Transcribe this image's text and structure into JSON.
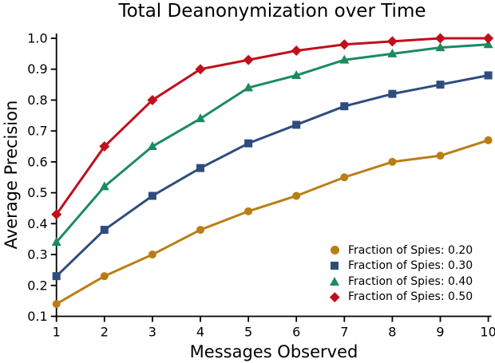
{
  "chart_data": {
    "type": "line",
    "title": "Total Deanonymization over Time",
    "xlabel": "Messages Observed",
    "ylabel": "Average Precision",
    "x": [
      1,
      2,
      3,
      4,
      5,
      6,
      7,
      8,
      9,
      10
    ],
    "xlim": [
      1,
      10
    ],
    "ylim": [
      0.1,
      1.0
    ],
    "yticks": [
      0.1,
      0.2,
      0.3,
      0.4,
      0.5,
      0.6,
      0.7,
      0.8,
      0.9,
      1.0
    ],
    "grid": false,
    "background": "#ffffff",
    "text_color": "#000000",
    "axis_color": "#000000",
    "legend_position": "lower-right-inside",
    "series": [
      {
        "name": "Fraction of Spies: 0.20",
        "marker": "circle",
        "color": "#BA7D15",
        "values": [
          0.14,
          0.23,
          0.3,
          0.38,
          0.44,
          0.49,
          0.55,
          0.6,
          0.62,
          0.67
        ]
      },
      {
        "name": "Fraction of Spies: 0.30",
        "marker": "square",
        "color": "#2E4D7E",
        "values": [
          0.23,
          0.38,
          0.49,
          0.58,
          0.66,
          0.72,
          0.78,
          0.82,
          0.85,
          0.88
        ]
      },
      {
        "name": "Fraction of Spies: 0.40",
        "marker": "triangle",
        "color": "#1B8B5D",
        "values": [
          0.34,
          0.52,
          0.65,
          0.74,
          0.84,
          0.88,
          0.93,
          0.95,
          0.97,
          0.98
        ]
      },
      {
        "name": "Fraction of Spies: 0.50",
        "marker": "diamond",
        "color": "#C10E1B",
        "values": [
          0.43,
          0.65,
          0.8,
          0.9,
          0.93,
          0.96,
          0.98,
          0.99,
          1.0,
          1.0
        ]
      }
    ]
  }
}
